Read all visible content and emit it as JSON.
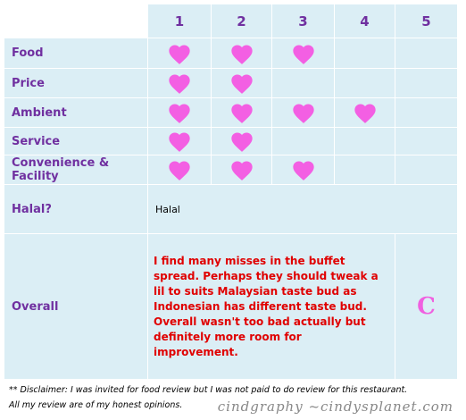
{
  "table": {
    "columns": [
      "1",
      "2",
      "3",
      "4",
      "5"
    ],
    "rows": [
      {
        "label": "Food",
        "rating": 3
      },
      {
        "label": "Price",
        "rating": 2
      },
      {
        "label": "Ambient",
        "rating": 4
      },
      {
        "label": "Service",
        "rating": 2
      },
      {
        "label": "Convenience & Facility",
        "rating": 3
      }
    ],
    "halal": {
      "label": "Halal?",
      "value": "Halal"
    },
    "overall": {
      "label": "Overall",
      "text": "I find many misses in the buffet spread. Perhaps they should tweak a lil to suits Malaysian taste bud as Indonesian has different taste bud. Overall wasn't too bad actually but definitely more room for improvement.",
      "grade": "C"
    }
  },
  "footer": {
    "disclaimer": "** Disclaimer: I was invited for food review but I was not paid to do review for this restaurant.",
    "note": "All my review are of my honest opinions."
  },
  "watermark": "cindgraphy ~cindysplanet.com"
}
